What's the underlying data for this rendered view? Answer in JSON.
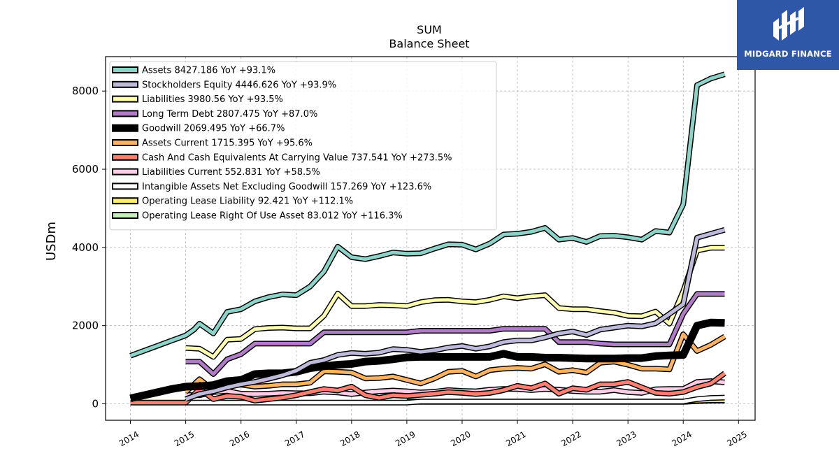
{
  "chart_data": {
    "type": "line",
    "title": "SUM",
    "subtitle": "Balance  Sheet",
    "xlabel": "",
    "ylabel": "USDm",
    "ylim": [
      -420,
      8880
    ],
    "xlim": [
      2013.55,
      2025.3
    ],
    "yticks": [
      0,
      2000,
      4000,
      6000,
      8000
    ],
    "xticks": [
      "2014",
      "2015",
      "2016",
      "2017",
      "2018",
      "2019",
      "2020",
      "2021",
      "2022",
      "2023",
      "2024",
      "2025"
    ],
    "grid": true,
    "legend_position": "top-left",
    "series": [
      {
        "name": "Assets",
        "legend": "Assets  8427.186 YoY +93.1%",
        "color": "#8dd3c7",
        "x": [
          2014.0,
          2014.25,
          2014.5,
          2014.75,
          2015.0,
          2015.15,
          2015.25,
          2015.5,
          2015.75,
          2016.0,
          2016.25,
          2016.5,
          2016.75,
          2017.0,
          2017.25,
          2017.5,
          2017.75,
          2018.0,
          2018.25,
          2018.5,
          2018.75,
          2019.0,
          2019.25,
          2019.5,
          2019.75,
          2020.0,
          2020.25,
          2020.5,
          2020.75,
          2021.0,
          2021.25,
          2021.5,
          2021.75,
          2022.0,
          2022.25,
          2022.5,
          2022.75,
          2023.0,
          2023.25,
          2023.5,
          2023.75,
          2024.0,
          2024.25,
          2024.5,
          2024.75
        ],
        "y": [
          1230,
          1360,
          1490,
          1620,
          1750,
          1900,
          2050,
          1800,
          2350,
          2420,
          2620,
          2730,
          2800,
          2780,
          3000,
          3380,
          4020,
          3750,
          3700,
          3780,
          3870,
          3840,
          3850,
          3970,
          4080,
          4070,
          3950,
          4100,
          4330,
          4350,
          4400,
          4500,
          4200,
          4240,
          4140,
          4290,
          4300,
          4260,
          4200,
          4420,
          4380,
          5100,
          8150,
          8320,
          8430
        ]
      },
      {
        "name": "Stockholders Equity",
        "legend": "Stockholders Equity  4446.626 YoY +93.9%",
        "color": "#bebada",
        "x": [
          2015.0,
          2015.25,
          2015.5,
          2015.75,
          2016.0,
          2016.25,
          2016.5,
          2016.75,
          2017.0,
          2017.25,
          2017.5,
          2017.75,
          2018.0,
          2018.25,
          2018.5,
          2018.75,
          2019.0,
          2019.25,
          2019.5,
          2019.75,
          2020.0,
          2020.25,
          2020.5,
          2020.75,
          2021.0,
          2021.25,
          2021.5,
          2021.75,
          2022.0,
          2022.25,
          2022.5,
          2022.75,
          2023.0,
          2023.25,
          2023.5,
          2023.75,
          2024.0,
          2024.25,
          2024.5,
          2024.75
        ],
        "y": [
          120,
          250,
          320,
          420,
          500,
          560,
          640,
          730,
          850,
          1050,
          1120,
          1250,
          1300,
          1280,
          1310,
          1400,
          1380,
          1330,
          1370,
          1440,
          1480,
          1410,
          1470,
          1580,
          1620,
          1620,
          1700,
          1800,
          1850,
          1760,
          1900,
          1950,
          2000,
          1980,
          2060,
          2300,
          2550,
          4250,
          4350,
          4450
        ]
      },
      {
        "name": "Liabilities",
        "legend": "Liabilities  3980.56 YoY +93.5%",
        "color": "#ffffb3",
        "x": [
          2015.0,
          2015.25,
          2015.5,
          2015.75,
          2016.0,
          2016.25,
          2016.5,
          2016.75,
          2017.0,
          2017.25,
          2017.5,
          2017.75,
          2018.0,
          2018.25,
          2018.5,
          2018.75,
          2019.0,
          2019.25,
          2019.5,
          2019.75,
          2020.0,
          2020.25,
          2020.5,
          2020.75,
          2021.0,
          2021.25,
          2021.5,
          2021.75,
          2022.0,
          2022.25,
          2022.5,
          2022.75,
          2023.0,
          2023.25,
          2023.5,
          2023.75,
          2024.0,
          2024.25,
          2024.5,
          2024.75
        ],
        "y": [
          1430,
          1410,
          1200,
          1640,
          1660,
          1910,
          1940,
          1950,
          1930,
          1930,
          2250,
          2820,
          2500,
          2500,
          2530,
          2520,
          2500,
          2600,
          2650,
          2660,
          2620,
          2600,
          2660,
          2750,
          2700,
          2750,
          2780,
          2450,
          2420,
          2420,
          2370,
          2330,
          2250,
          2240,
          2360,
          2050,
          2880,
          3920,
          3990,
          3990
        ]
      },
      {
        "name": "Long Term Debt",
        "legend": "Long Term Debt  2807.475 YoY +87.0%",
        "color": "#b07cc6",
        "x": [
          2015.0,
          2015.25,
          2015.5,
          2015.75,
          2016.0,
          2016.25,
          2016.5,
          2016.75,
          2017.0,
          2017.25,
          2017.5,
          2017.75,
          2018.0,
          2018.25,
          2018.5,
          2018.75,
          2019.0,
          2019.25,
          2019.5,
          2019.75,
          2020.0,
          2020.25,
          2020.5,
          2020.75,
          2021.0,
          2021.25,
          2021.5,
          2021.75,
          2022.0,
          2022.25,
          2022.5,
          2022.75,
          2023.0,
          2023.25,
          2023.5,
          2023.75,
          2024.0,
          2024.25,
          2024.5,
          2024.75
        ],
        "y": [
          1080,
          1080,
          760,
          1140,
          1270,
          1540,
          1540,
          1540,
          1540,
          1540,
          1830,
          1830,
          1830,
          1830,
          1830,
          1830,
          1830,
          1870,
          1870,
          1870,
          1870,
          1870,
          1870,
          1920,
          1920,
          1920,
          1920,
          1580,
          1580,
          1580,
          1540,
          1520,
          1520,
          1520,
          1520,
          1520,
          2300,
          2810,
          2810,
          2810
        ]
      },
      {
        "name": "Goodwill",
        "legend": "Goodwill  2069.495 YoY +66.7%",
        "color": "#000000",
        "x": [
          2014.0,
          2014.25,
          2014.5,
          2014.75,
          2015.0,
          2015.25,
          2015.5,
          2015.75,
          2016.0,
          2016.25,
          2016.5,
          2016.75,
          2017.0,
          2017.25,
          2017.5,
          2017.75,
          2018.0,
          2018.25,
          2018.5,
          2018.75,
          2019.0,
          2019.25,
          2019.5,
          2019.75,
          2020.0,
          2020.25,
          2020.5,
          2020.75,
          2021.0,
          2021.25,
          2021.5,
          2021.75,
          2022.0,
          2022.25,
          2022.5,
          2022.75,
          2023.0,
          2023.25,
          2023.5,
          2023.75,
          2024.0,
          2024.25,
          2024.5,
          2024.75
        ],
        "y": [
          140,
          220,
          300,
          380,
          440,
          450,
          480,
          580,
          610,
          760,
          780,
          780,
          820,
          910,
          960,
          1000,
          1020,
          1080,
          1100,
          1140,
          1190,
          1200,
          1200,
          1200,
          1200,
          1200,
          1200,
          1280,
          1200,
          1200,
          1180,
          1180,
          1170,
          1160,
          1160,
          1160,
          1170,
          1170,
          1220,
          1240,
          1250,
          2000,
          2080,
          2070
        ]
      },
      {
        "name": "Assets Current",
        "legend": "Assets Current  1715.395 YoY +95.6%",
        "color": "#fdb462",
        "x": [
          2015.0,
          2015.25,
          2015.5,
          2015.75,
          2016.0,
          2016.25,
          2016.5,
          2016.75,
          2017.0,
          2017.25,
          2017.5,
          2017.75,
          2018.0,
          2018.25,
          2018.5,
          2018.75,
          2019.0,
          2019.25,
          2019.5,
          2019.75,
          2020.0,
          2020.25,
          2020.5,
          2020.75,
          2021.0,
          2021.25,
          2021.5,
          2021.75,
          2022.0,
          2022.25,
          2022.5,
          2022.75,
          2023.0,
          2023.25,
          2023.5,
          2023.75,
          2024.0,
          2024.25,
          2024.5,
          2024.75
        ],
        "y": [
          300,
          630,
          350,
          460,
          490,
          440,
          460,
          500,
          500,
          540,
          830,
          820,
          800,
          650,
          660,
          700,
          610,
          520,
          650,
          820,
          840,
          700,
          860,
          900,
          920,
          900,
          1010,
          820,
          860,
          800,
          1050,
          1080,
          1000,
          900,
          900,
          880,
          1780,
          1350,
          1510,
          1720
        ]
      },
      {
        "name": "Cash And Cash Equivalents At Carrying Value",
        "legend": "Cash And Cash Equivalents At Carrying Value  737.541 YoY +273.5%",
        "color": "#fb8072",
        "x": [
          2014.0,
          2014.25,
          2014.5,
          2014.75,
          2015.0,
          2015.25,
          2015.5,
          2015.75,
          2016.0,
          2016.25,
          2016.5,
          2016.75,
          2017.0,
          2017.25,
          2017.5,
          2017.75,
          2018.0,
          2018.25,
          2018.5,
          2018.75,
          2019.0,
          2019.25,
          2019.5,
          2019.75,
          2020.0,
          2020.25,
          2020.5,
          2020.75,
          2021.0,
          2021.25,
          2021.5,
          2021.75,
          2022.0,
          2022.25,
          2022.5,
          2022.75,
          2023.0,
          2023.25,
          2023.5,
          2023.75,
          2024.0,
          2024.25,
          2024.5,
          2024.75
        ],
        "y": [
          30,
          30,
          30,
          30,
          30,
          380,
          120,
          200,
          180,
          80,
          120,
          160,
          220,
          300,
          380,
          340,
          440,
          220,
          150,
          220,
          200,
          230,
          260,
          300,
          280,
          250,
          280,
          350,
          460,
          400,
          520,
          260,
          400,
          360,
          500,
          500,
          560,
          420,
          280,
          260,
          300,
          430,
          520,
          780
        ]
      },
      {
        "name": "Liabilities Current",
        "legend": "Liabilities Current  552.831 YoY +58.5%",
        "color": "#fccde5",
        "x": [
          2015.0,
          2015.25,
          2015.5,
          2015.75,
          2016.0,
          2016.25,
          2016.5,
          2016.75,
          2017.0,
          2017.25,
          2017.5,
          2017.75,
          2018.0,
          2018.25,
          2018.5,
          2018.75,
          2019.0,
          2019.25,
          2019.5,
          2019.75,
          2020.0,
          2020.25,
          2020.5,
          2020.75,
          2021.0,
          2021.25,
          2021.5,
          2021.75,
          2022.0,
          2022.25,
          2022.5,
          2022.75,
          2023.0,
          2023.25,
          2023.5,
          2023.75,
          2024.0,
          2024.25,
          2024.5,
          2024.75
        ],
        "y": [
          230,
          220,
          300,
          330,
          260,
          250,
          260,
          280,
          270,
          270,
          310,
          290,
          250,
          290,
          320,
          340,
          320,
          290,
          310,
          350,
          330,
          320,
          360,
          380,
          380,
          350,
          380,
          360,
          330,
          310,
          310,
          350,
          300,
          280,
          370,
          380,
          380,
          560,
          580,
          550
        ]
      },
      {
        "name": "Intangible Assets Net Excluding Goodwill",
        "legend": "Intangible Assets Net Excluding Goodwill  157.269 YoY +123.6%",
        "color": "#ffffff",
        "x": [
          2015.0,
          2015.25,
          2015.5,
          2015.75,
          2016.0,
          2016.25,
          2016.5,
          2016.75,
          2017.0,
          2017.25,
          2017.5,
          2017.75,
          2018.0,
          2018.25,
          2018.5,
          2018.75,
          2019.0,
          2019.25,
          2019.5,
          2019.75,
          2020.0,
          2020.25,
          2020.5,
          2020.75,
          2021.0,
          2021.25,
          2021.5,
          2021.75,
          2022.0,
          2022.25,
          2022.5,
          2022.75,
          2023.0,
          2023.25,
          2023.5,
          2023.75,
          2024.0,
          2024.25,
          2024.5,
          2024.75
        ],
        "y": [
          30,
          30,
          30,
          30,
          30,
          30,
          30,
          30,
          30,
          30,
          30,
          30,
          30,
          30,
          30,
          30,
          30,
          60,
          60,
          60,
          60,
          60,
          60,
          60,
          60,
          60,
          60,
          60,
          60,
          60,
          60,
          60,
          60,
          60,
          60,
          60,
          60,
          120,
          150,
          160
        ]
      },
      {
        "name": "Operating Lease Liability",
        "legend": "Operating Lease Liability  92.421 YoY +112.1%",
        "color": "#ffed6f",
        "x": [
          2019.0,
          2019.5,
          2020.0,
          2020.5,
          2021.0,
          2021.5,
          2022.0,
          2022.5,
          2023.0,
          2023.5,
          2023.75,
          2024.0,
          2024.25,
          2024.5,
          2024.75
        ],
        "y": [
          60,
          60,
          60,
          60,
          60,
          60,
          60,
          60,
          60,
          60,
          60,
          60,
          80,
          90,
          92
        ]
      },
      {
        "name": "Operating Lease Right Of Use Asset",
        "legend": "Operating Lease Right Of Use Asset  83.012 YoY +116.3%",
        "color": "#ccebc5",
        "x": [
          2019.0,
          2019.5,
          2020.0,
          2020.5,
          2021.0,
          2021.5,
          2022.0,
          2022.5,
          2023.0,
          2023.5,
          2023.75,
          2024.0,
          2024.25,
          2024.5,
          2024.75
        ],
        "y": [
          50,
          50,
          50,
          50,
          50,
          50,
          50,
          50,
          50,
          50,
          50,
          50,
          70,
          80,
          83
        ]
      }
    ]
  },
  "brand": {
    "name": "MIDGARD FINANCE",
    "color": "#2f57a8"
  }
}
